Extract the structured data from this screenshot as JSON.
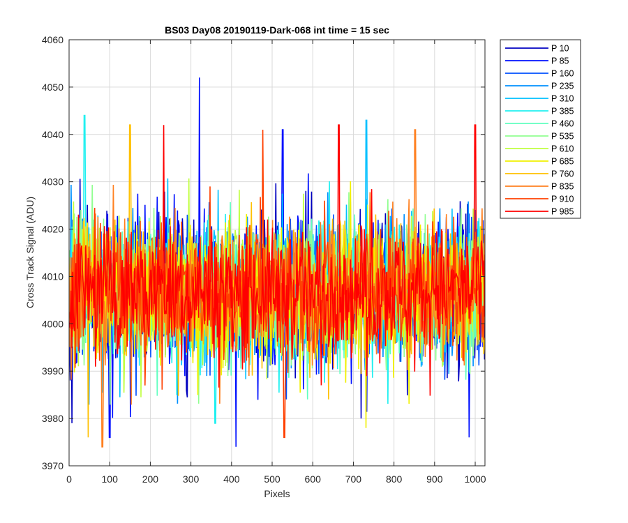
{
  "chart_data": {
    "type": "line",
    "title": "BS03 Day08 20190119-Dark-068 int time = 15 sec",
    "xlabel": "Pixels",
    "ylabel": "Cross Track Signal (ADU)",
    "xlim": [
      0,
      1024
    ],
    "ylim": [
      3970,
      4060
    ],
    "xticks": [
      0,
      100,
      200,
      300,
      400,
      500,
      600,
      700,
      800,
      900,
      1000
    ],
    "yticks": [
      3970,
      3980,
      3990,
      4000,
      4010,
      4020,
      4030,
      4040,
      4050,
      4060
    ],
    "grid": true,
    "legend_position": "outside-right",
    "series": [
      {
        "name": "P 10",
        "color": "#0000C0",
        "mean": 4007,
        "spread": 7.5
      },
      {
        "name": "P 85",
        "color": "#0010FF",
        "mean": 4007,
        "spread": 7.5
      },
      {
        "name": "P 160",
        "color": "#0050FF",
        "mean": 4007,
        "spread": 7.0
      },
      {
        "name": "P 235",
        "color": "#0090FF",
        "mean": 4007,
        "spread": 7.0
      },
      {
        "name": "P 310",
        "color": "#00C0FF",
        "mean": 4007,
        "spread": 7.0
      },
      {
        "name": "P 385",
        "color": "#20F0F0",
        "mean": 4007,
        "spread": 7.0
      },
      {
        "name": "P 460",
        "color": "#60FFC0",
        "mean": 4007,
        "spread": 7.0
      },
      {
        "name": "P 535",
        "color": "#90FF90",
        "mean": 4007,
        "spread": 7.0
      },
      {
        "name": "P 610",
        "color": "#C0FF40",
        "mean": 4007,
        "spread": 7.0
      },
      {
        "name": "P 685",
        "color": "#F0F000",
        "mean": 4007,
        "spread": 7.0
      },
      {
        "name": "P 760",
        "color": "#FFC000",
        "mean": 4007,
        "spread": 7.0
      },
      {
        "name": "P 835",
        "color": "#FF8020",
        "mean": 4007,
        "spread": 7.0
      },
      {
        "name": "P 910",
        "color": "#FF4000",
        "mean": 4007,
        "spread": 6.5
      },
      {
        "name": "P 985",
        "color": "#FF0000",
        "mean": 4007,
        "spread": 6.5
      }
    ],
    "peaks": [
      {
        "series": "P 85",
        "x": 321,
        "y": 4052
      },
      {
        "series": "P 385",
        "x": 38,
        "y": 4044
      },
      {
        "series": "P 760",
        "x": 150,
        "y": 4042
      },
      {
        "series": "P 985",
        "x": 233,
        "y": 4042
      },
      {
        "series": "P 985",
        "x": 1000,
        "y": 4042
      },
      {
        "series": "P 310",
        "x": 732,
        "y": 4043
      },
      {
        "series": "P 985",
        "x": 664,
        "y": 4042
      },
      {
        "series": "P 835",
        "x": 852,
        "y": 4041
      },
      {
        "series": "P 910",
        "x": 477,
        "y": 4041
      },
      {
        "series": "P 85",
        "x": 526,
        "y": 4041
      },
      {
        "series": "P 85",
        "x": 411,
        "y": 3974
      },
      {
        "series": "P 835",
        "x": 82,
        "y": 3974
      },
      {
        "series": "P 910",
        "x": 530,
        "y": 3976
      },
      {
        "series": "P 685",
        "x": 731,
        "y": 3978
      },
      {
        "series": "P 10",
        "x": 7,
        "y": 3979
      },
      {
        "series": "P 85",
        "x": 100,
        "y": 3976
      },
      {
        "series": "P 85",
        "x": 985,
        "y": 3976
      },
      {
        "series": "P 385",
        "x": 360,
        "y": 3979
      },
      {
        "series": "P 760",
        "x": 47,
        "y": 3976
      }
    ]
  }
}
